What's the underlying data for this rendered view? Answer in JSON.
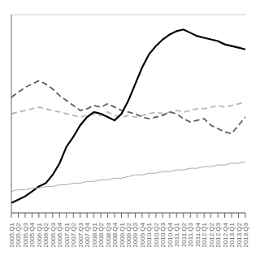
{
  "chart_data": {
    "type": "line",
    "categories": [
      "2005.Q1",
      "2005.Q2",
      "2005.Q3",
      "2005.Q4",
      "2006.Q1",
      "2006.Q2",
      "2006.Q3",
      "2006.Q4",
      "2007.Q1",
      "2007.Q2",
      "2007.Q3",
      "2007.Q4",
      "2008.Q1",
      "2008.Q2",
      "2008.Q3",
      "2008.Q4",
      "2009.Q1",
      "2009.Q2",
      "2009.Q3",
      "2009.Q4",
      "2010.Q1",
      "2010.Q2",
      "2010.Q3",
      "2010.Q4",
      "2011.Q1",
      "2011.Q2",
      "2011.Q3",
      "2011.Q4",
      "2012.Q1",
      "2012.Q2",
      "2012.Q3",
      "2012.Q4",
      "2013.Q1",
      "2013.Q2",
      "2013.Q3"
    ],
    "series": [
      {
        "color": "#b8b8b8",
        "line_style": "dashed",
        "values": [
          2.2,
          2.3,
          2.4,
          2.5,
          2.6,
          2.5,
          2.4,
          2.3,
          2.2,
          2.1,
          2.0,
          2.1,
          2.2,
          2.1,
          2.3,
          2.1,
          2.0,
          2.1,
          2.0,
          2.1,
          2.2,
          2.3,
          2.2,
          2.3,
          2.4,
          2.3,
          2.4,
          2.5,
          2.5,
          2.6,
          2.7,
          2.6,
          2.7,
          2.8,
          2.9
        ]
      },
      {
        "color": "#606060",
        "line_style": "dashed",
        "values": [
          3.2,
          3.5,
          3.8,
          4.0,
          4.2,
          4.0,
          3.7,
          3.3,
          3.0,
          2.7,
          2.4,
          2.5,
          2.7,
          2.6,
          2.8,
          2.6,
          2.4,
          2.3,
          2.2,
          2.0,
          1.9,
          2.0,
          2.1,
          2.3,
          2.2,
          1.9,
          1.7,
          1.8,
          1.9,
          1.5,
          1.3,
          1.1,
          1.0,
          1.5,
          2.0
        ]
      },
      {
        "color": "#000000",
        "line_style": "solid",
        "values": [
          -3.2,
          -3.0,
          -2.8,
          -2.5,
          -2.2,
          -2.0,
          -1.5,
          -0.8,
          0.2,
          0.8,
          1.5,
          2.0,
          2.3,
          2.2,
          2.0,
          1.8,
          2.2,
          3.0,
          4.0,
          5.0,
          5.8,
          6.3,
          6.7,
          7.0,
          7.2,
          7.3,
          7.1,
          6.9,
          6.8,
          6.7,
          6.6,
          6.4,
          6.3,
          6.2,
          6.1
        ]
      },
      {
        "color": "#aaaaaa",
        "line_style": "solid",
        "values": [
          -2.5,
          -2.4,
          -2.4,
          -2.3,
          -2.3,
          -2.2,
          -2.2,
          -2.1,
          -2.1,
          -2.0,
          -2.0,
          -1.9,
          -1.9,
          -1.8,
          -1.8,
          -1.7,
          -1.7,
          -1.6,
          -1.5,
          -1.5,
          -1.4,
          -1.4,
          -1.3,
          -1.3,
          -1.2,
          -1.2,
          -1.1,
          -1.1,
          -1.0,
          -1.0,
          -0.9,
          -0.9,
          -0.8,
          -0.8,
          -0.7
        ]
      }
    ],
    "ylim": [
      -3.8,
      8.2
    ],
    "yticks": [
      -2,
      0,
      2,
      4,
      6,
      8
    ],
    "grid": true,
    "tick_labels": "x"
  }
}
